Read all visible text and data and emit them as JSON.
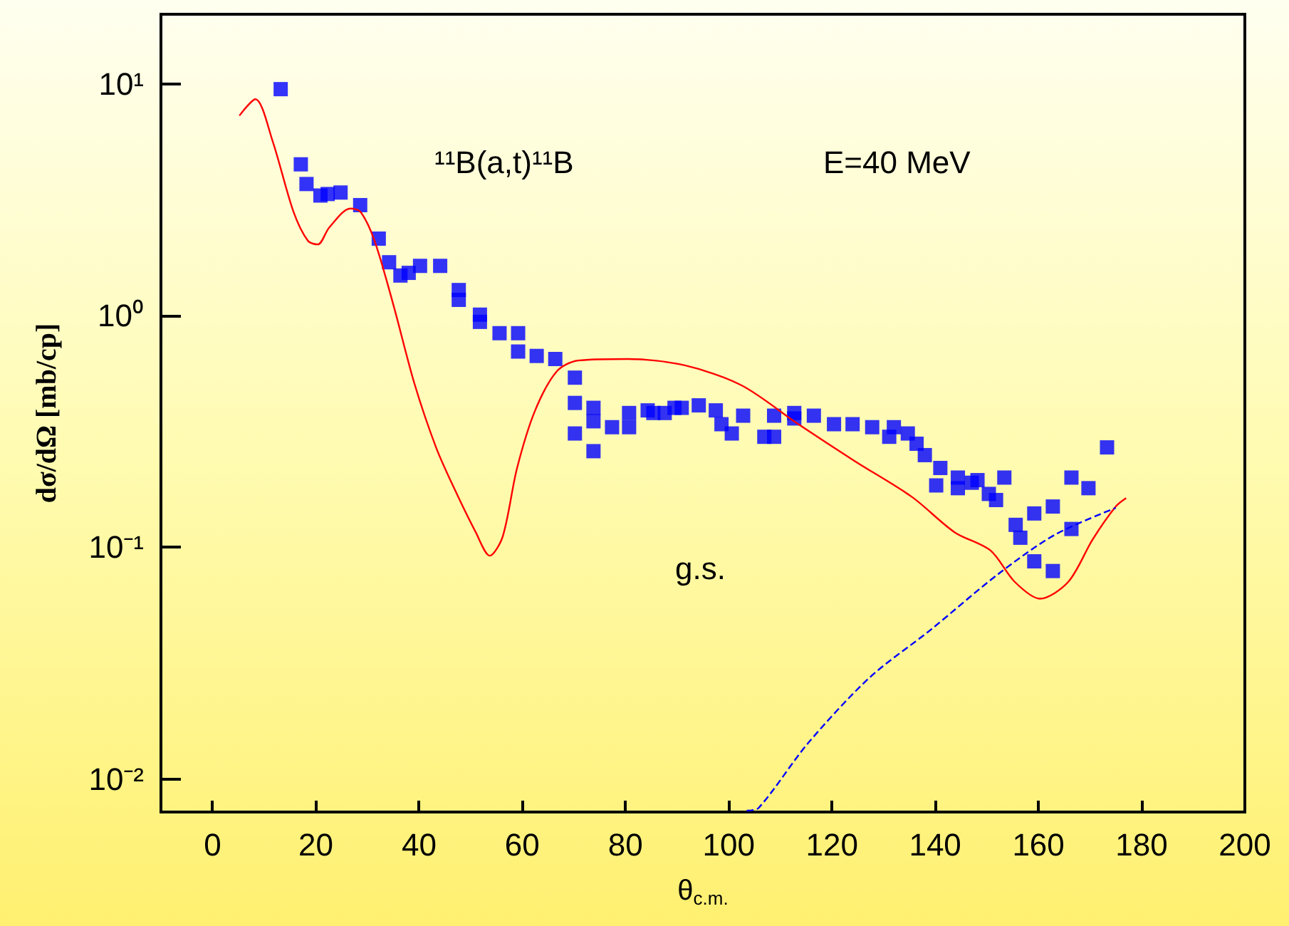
{
  "chart_data": {
    "type": "scatter",
    "xlabel": "θ$_{c.m.}$",
    "ylabel": "dσ/dΩ [mb/cp]",
    "annotations": [
      "¹¹B(a,t)¹¹B",
      "E=40 MeV",
      "g.s."
    ],
    "xlim": [
      -10,
      200
    ],
    "xticks": [
      0,
      20,
      40,
      60,
      80,
      100,
      120,
      140,
      160,
      180,
      200
    ],
    "ylim": [
      0.0072,
      20
    ],
    "yticks": [
      {
        "value": 0.01,
        "label": "10⁻²"
      },
      {
        "value": 0.1,
        "label": "10⁻¹"
      },
      {
        "value": 1,
        "label": "10⁰"
      },
      {
        "value": 10,
        "label": "10¹"
      }
    ],
    "log": true,
    "grid": false,
    "series": [
      {
        "marker": "square",
        "color": "#0000ff",
        "x": [
          13.2,
          17.1,
          18.2,
          20.9,
          22.3,
          24.8,
          28.6,
          32.2,
          34.2,
          36.4,
          38.0,
          40.2,
          44.1,
          47.7,
          47.7,
          51.8,
          51.8,
          55.6,
          59.2,
          59.2,
          62.8,
          66.4,
          70.2,
          70.2,
          70.2,
          73.8,
          73.8,
          73.8,
          77.4,
          80.7,
          80.7,
          84.3,
          85.4,
          87.6,
          89.5,
          90.9,
          94.2,
          97.5,
          98.6,
          100.6,
          102.8,
          106.9,
          108.8,
          108.8,
          112.7,
          112.7,
          116.5,
          120.4,
          124.0,
          127.8,
          131.1,
          132.0,
          134.7,
          136.4,
          138.0,
          140.2,
          141.0,
          144.4,
          144.4,
          147.1,
          148.2,
          150.4,
          151.8,
          153.4,
          155.6,
          156.5,
          159.2,
          159.2,
          162.8,
          162.8,
          166.4,
          166.4,
          169.7,
          173.3
        ],
        "values": [
          9.5,
          4.5,
          3.7,
          3.3,
          3.35,
          3.4,
          3.0,
          2.15,
          1.7,
          1.49,
          1.53,
          1.64,
          1.64,
          1.29,
          1.17,
          1.01,
          0.94,
          0.84,
          0.84,
          0.7,
          0.67,
          0.65,
          0.54,
          0.42,
          0.31,
          0.4,
          0.35,
          0.26,
          0.33,
          0.38,
          0.33,
          0.39,
          0.38,
          0.38,
          0.4,
          0.4,
          0.41,
          0.39,
          0.34,
          0.31,
          0.37,
          0.3,
          0.37,
          0.3,
          0.38,
          0.36,
          0.37,
          0.34,
          0.34,
          0.33,
          0.3,
          0.33,
          0.31,
          0.28,
          0.25,
          0.185,
          0.22,
          0.2,
          0.18,
          0.19,
          0.195,
          0.17,
          0.16,
          0.2,
          0.125,
          0.11,
          0.14,
          0.087,
          0.15,
          0.079,
          0.2,
          0.12,
          0.18,
          0.27
        ]
      },
      {
        "type": "line",
        "marker": "none",
        "line_style": "solid",
        "color": "#ff0000",
        "x": [
          5.2,
          8.3,
          11.6,
          15.7,
          18.5,
          20.4,
          22.6,
          26.7,
          28.7,
          31.4,
          35,
          39.1,
          43.3,
          46.8,
          51,
          53.7,
          56.2,
          59,
          62.5,
          66.7,
          70.8,
          80.4,
          91.5,
          102.5,
          113.5,
          124.5,
          135.5,
          143.8,
          150.7,
          155.4,
          160.3,
          165.8,
          170.5,
          175,
          177
        ],
        "values": [
          7.3,
          8.6,
          5.7,
          2.8,
          2.1,
          2.03,
          2.4,
          2.9,
          2.8,
          2.1,
          1.12,
          0.51,
          0.27,
          0.18,
          0.116,
          0.092,
          0.111,
          0.22,
          0.39,
          0.575,
          0.64,
          0.65,
          0.61,
          0.5,
          0.34,
          0.235,
          0.165,
          0.116,
          0.097,
          0.071,
          0.06,
          0.071,
          0.108,
          0.15,
          0.163
        ]
      },
      {
        "type": "line",
        "marker": "none",
        "line_style": "dashed",
        "color": "#0000ff",
        "x": [
          103.5,
          105.8,
          115.4,
          127.3,
          139.1,
          152,
          163.1,
          175
        ],
        "values": [
          0.0073,
          0.0075,
          0.0143,
          0.0274,
          0.044,
          0.076,
          0.113,
          0.148
        ]
      }
    ]
  }
}
